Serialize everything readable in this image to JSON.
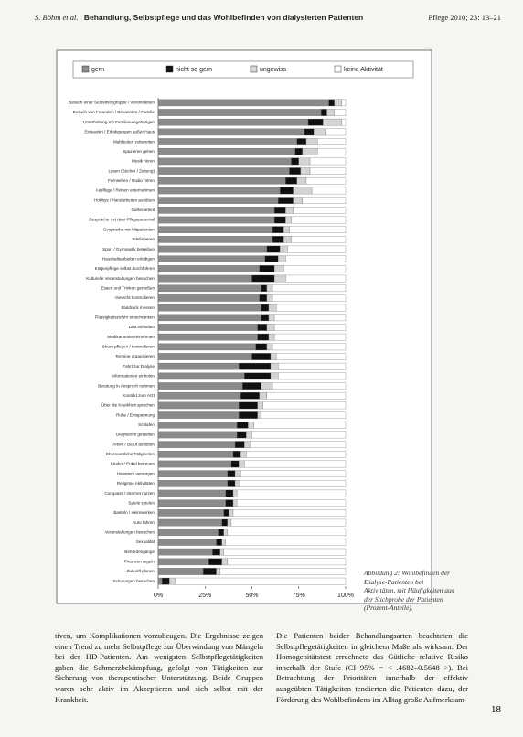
{
  "header": {
    "authors": "S. Böhm et al.",
    "title": "Behandlung, Selbstpflege und das Wohlbefinden von dialysierten Patienten",
    "journal": "Pflege 2010; 23: 13–21"
  },
  "chart_data": {
    "type": "stacked-bar-horizontal",
    "categories": [
      "Besuch einer Selbsthilfegruppe / Vereinsleben",
      "Besuch von Freunden / Bekannten / Familie",
      "Unterhaltung mit Familienangehörigen",
      "Einkaufen / Erledigungen außer Haus",
      "Mahlzeiten zubereiten",
      "Spazieren gehen",
      "Musik hören",
      "Lesen (Bücher / Zeitung)",
      "Fernsehen / Radio hören",
      "Ausflüge / Reisen unternehmen",
      "Hobbys / Handarbeiten ausüben",
      "Gartenarbeit",
      "Gespräche mit dem Pflegepersonal",
      "Gespräche mit Mitpatienten",
      "Telefonieren",
      "Sport / Gymnastik betreiben",
      "Haushaltsarbeiten erledigen",
      "Körperpflege selbst durchführen",
      "Kulturelle Veranstaltungen besuchen",
      "Essen und Trinken genießen",
      "Gewicht kontrollieren",
      "Blutdruck messen",
      "Flüssigkeitszufuhr einschränken",
      "Diät einhalten",
      "Medikamente einnehmen",
      "Shunt pflegen / kontrollieren",
      "Termine organisieren",
      "Fahrt zur Dialyse",
      "Informationen einholen",
      "Beratung in Anspruch nehmen",
      "Kontakt zum Arzt",
      "Über die Krankheit sprechen",
      "Ruhe / Entspannung",
      "Schlafen",
      "Dialysezeit gestalten",
      "Arbeit / Beruf ausüben",
      "Ehrenamtliche Tätigkeiten",
      "Kinder / Enkel betreuen",
      "Haustiere versorgen",
      "Religiöse Aktivitäten",
      "Computer / Internet nutzen",
      "Spiele spielen",
      "Basteln / Heimwerken",
      "Auto fahren",
      "Veranstaltungen besuchen",
      "Sexualität",
      "Behördengänge",
      "Finanzen regeln",
      "Zukunft planen",
      "Schulungen besuchen"
    ],
    "series": [
      {
        "name": "gern",
        "color": "#8a8a8a",
        "values": [
          91,
          87,
          80,
          78,
          74,
          73,
          71,
          70,
          68,
          65,
          64,
          62,
          62,
          61,
          61,
          58,
          57,
          54,
          50,
          55,
          54,
          55,
          55,
          53,
          53,
          52,
          50,
          43,
          46,
          45,
          44,
          43,
          43,
          42,
          42,
          41,
          40,
          39,
          37,
          37,
          36,
          36,
          35,
          34,
          32,
          31,
          29,
          27,
          24,
          2
        ]
      },
      {
        "name": "nicht so gern",
        "color": "#111111",
        "values": [
          3,
          3,
          8,
          5,
          5,
          4,
          4,
          6,
          6,
          7,
          8,
          6,
          6,
          6,
          6,
          7,
          7,
          8,
          12,
          3,
          4,
          4,
          4,
          5,
          6,
          6,
          10,
          17,
          14,
          10,
          10,
          10,
          10,
          6,
          5,
          5,
          4,
          4,
          4,
          4,
          4,
          4,
          3,
          3,
          3,
          3,
          4,
          7,
          7,
          4
        ]
      },
      {
        "name": "ungewiss",
        "color": "#d4d4d4",
        "values": [
          4,
          4,
          10,
          6,
          6,
          8,
          6,
          5,
          5,
          10,
          5,
          4,
          3,
          3,
          4,
          4,
          4,
          5,
          6,
          3,
          3,
          4,
          3,
          4,
          3,
          3,
          3,
          4,
          4,
          6,
          4,
          3,
          2,
          3,
          3,
          3,
          3,
          3,
          3,
          2,
          2,
          2,
          2,
          2,
          2,
          2,
          2,
          3,
          2,
          3
        ]
      },
      {
        "name": "keine Aktivität",
        "color": "#ffffff",
        "values": [
          2,
          6,
          2,
          11,
          15,
          15,
          19,
          19,
          21,
          18,
          23,
          28,
          29,
          30,
          29,
          31,
          32,
          33,
          32,
          39,
          39,
          37,
          38,
          38,
          38,
          39,
          37,
          36,
          36,
          39,
          42,
          44,
          45,
          49,
          50,
          51,
          53,
          54,
          56,
          57,
          58,
          58,
          60,
          61,
          63,
          64,
          65,
          63,
          67,
          91
        ]
      }
    ],
    "xlim": [
      0,
      100
    ],
    "xticks": [
      {
        "value": 0,
        "label": "0%"
      },
      {
        "value": 25,
        "label": "25%"
      },
      {
        "value": 50,
        "label": "50%"
      },
      {
        "value": 75,
        "label": "75%"
      },
      {
        "value": 100,
        "label": "100%"
      }
    ],
    "grid": false
  },
  "caption": "Abbildung 2: Wohlbefinden der Dialyse-Patienten bei Aktivitäten, mit Häufigkeiten aus der Stichprobe der Patienten (Prozent-Anteile).",
  "body": {
    "left": "tiven, um Komplikationen vorzubeugen. Die Ergebnisse zeigen einen Trend zu mehr Selbstpflege zur Überwindung von Mängeln bei der HD-Patienten. Am wenigsten Selbstpflegetätigkeiten gaben die Schmerzbekämpfung, gefolgt von Tätigkeiten zur Sicherung von therapeutischer Unterstützung. Beide Gruppen waren sehr aktiv im Akzeptieren und sich selbst mit der Krankheit.",
    "right": "Die Patienten beider Behandlungsarten beachteten die Selbstpflegetätigkeiten in gleichem Maße als wirksam. Der Homogenitätstest errechnete das Gütliche relative Risiko innerhalb der Stufe (CI 95% = < .4682–0.5648 >). Bei Betrachtung der Prioritäten innerhalb der effektiv ausgeübten Tätigkeiten tendierten die Patienten dazu, der Förderung des Wohlbefindens im Alltag große Aufmerksam-"
  },
  "page_number": "18"
}
